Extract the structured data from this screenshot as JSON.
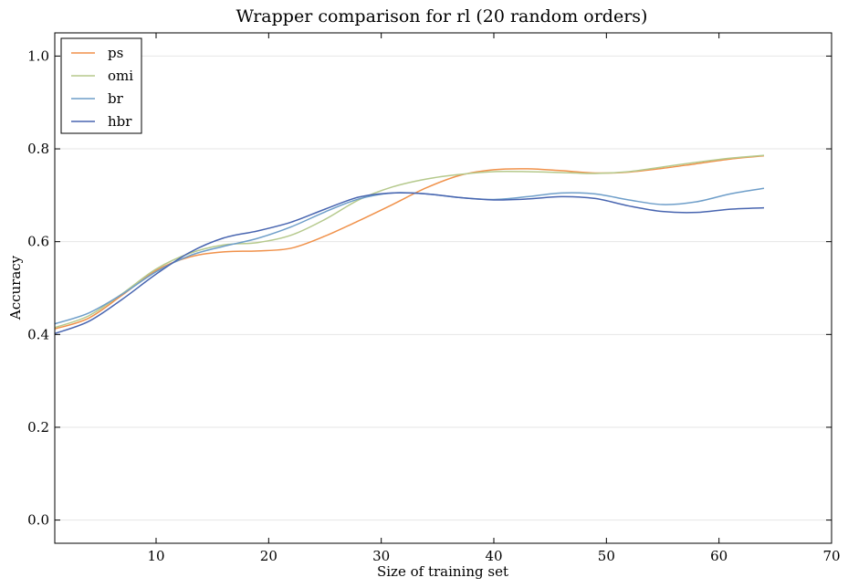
{
  "chart_data": {
    "type": "line",
    "title": "Wrapper comparison for rl (20 random orders)",
    "xlabel": "Size of training set",
    "ylabel": "Accuracy",
    "xlim": [
      1,
      70
    ],
    "ylim": [
      -0.05,
      1.05
    ],
    "xticks": [
      10,
      20,
      30,
      40,
      50,
      60,
      70
    ],
    "xtick_labels": [
      "10",
      "20",
      "30",
      "40",
      "50",
      "60",
      "70"
    ],
    "yticks": [
      0.0,
      0.2,
      0.4,
      0.6,
      0.8,
      1.0
    ],
    "ytick_labels": [
      "0.0",
      "0.2",
      "0.4",
      "0.6",
      "0.8",
      "1.0"
    ],
    "grid": "horizontal",
    "legend_position": "top-left",
    "x": [
      1,
      4,
      7,
      10,
      13,
      16,
      19,
      22,
      25,
      28,
      31,
      34,
      37,
      40,
      43,
      46,
      49,
      52,
      55,
      58,
      61,
      64
    ],
    "series": [
      {
        "name": "ps",
        "color": "#f0914a",
        "values": [
          0.412,
          0.435,
          0.485,
          0.538,
          0.567,
          0.578,
          0.58,
          0.586,
          0.612,
          0.645,
          0.68,
          0.716,
          0.743,
          0.755,
          0.757,
          0.753,
          0.748,
          0.75,
          0.758,
          0.768,
          0.778,
          0.785
        ]
      },
      {
        "name": "omi",
        "color": "#b5c98c",
        "values": [
          0.415,
          0.44,
          0.488,
          0.541,
          0.575,
          0.593,
          0.598,
          0.614,
          0.648,
          0.69,
          0.718,
          0.735,
          0.745,
          0.751,
          0.751,
          0.749,
          0.747,
          0.751,
          0.761,
          0.771,
          0.78,
          0.786
        ]
      },
      {
        "name": "br",
        "color": "#6e9ec9",
        "values": [
          0.423,
          0.446,
          0.487,
          0.535,
          0.57,
          0.59,
          0.607,
          0.632,
          0.664,
          0.692,
          0.705,
          0.703,
          0.695,
          0.691,
          0.697,
          0.705,
          0.703,
          0.69,
          0.68,
          0.686,
          0.703,
          0.715
        ]
      },
      {
        "name": "hbr",
        "color": "#4865b0",
        "values": [
          0.402,
          0.428,
          0.476,
          0.53,
          0.577,
          0.608,
          0.623,
          0.642,
          0.67,
          0.696,
          0.705,
          0.703,
          0.695,
          0.69,
          0.692,
          0.697,
          0.693,
          0.677,
          0.665,
          0.663,
          0.67,
          0.673
        ]
      }
    ]
  }
}
